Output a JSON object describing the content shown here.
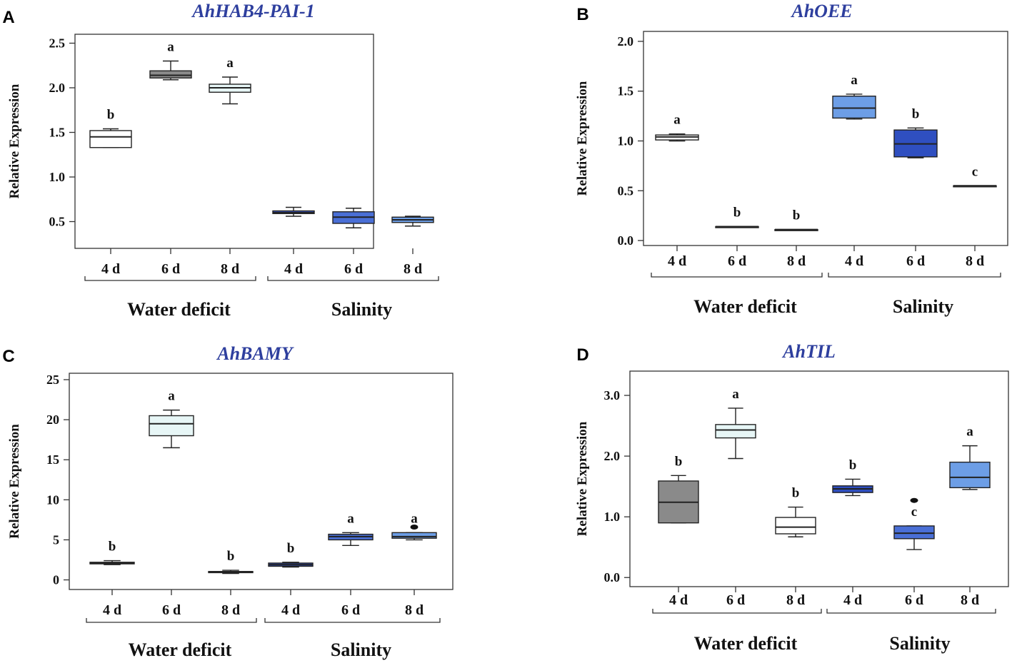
{
  "colors": {
    "title": "#2e3f9e",
    "axis": "#333333",
    "outline": "#222222",
    "white": "#ffffff",
    "gray": "#8a8a8a",
    "light_teal": "#e7f6f6",
    "blue_light": "#6d9ee6",
    "blue_mid": "#4a6fd6",
    "blue_dark": "#2f4fc0",
    "blue_deep": "#3a55c4"
  },
  "chart_data": [
    {
      "panel": "A",
      "type": "box",
      "title": "AhHAB4-PAI-1",
      "ylabel": "Relative Expression",
      "ylim": [
        0.2,
        2.6
      ],
      "yticks": [
        "0.5",
        "1.0",
        "1.5",
        "2.0",
        "2.5"
      ],
      "categories": [
        "4 d",
        "6 d",
        "8 d",
        "4 d",
        "6 d",
        "8 d"
      ],
      "groups": [
        "Water deficit",
        "Salinity"
      ],
      "boxes": [
        {
          "whislo": 1.33,
          "q1": 1.33,
          "med": 1.45,
          "q3": 1.52,
          "whishi": 1.54,
          "label": "b",
          "fill": "white"
        },
        {
          "whislo": 2.09,
          "q1": 2.11,
          "med": 2.14,
          "q3": 2.19,
          "whishi": 2.3,
          "label": "a",
          "fill": "gray"
        },
        {
          "whislo": 1.82,
          "q1": 1.95,
          "med": 2.0,
          "q3": 2.04,
          "whishi": 2.12,
          "label": "a",
          "fill": "light_teal"
        },
        {
          "whislo": 0.56,
          "q1": 0.59,
          "med": 0.6,
          "q3": 0.62,
          "whishi": 0.66,
          "label": "",
          "fill": "blue_deep"
        },
        {
          "whislo": 0.43,
          "q1": 0.48,
          "med": 0.55,
          "q3": 0.61,
          "whishi": 0.65,
          "label": "",
          "fill": "blue_mid"
        },
        {
          "whislo": 0.45,
          "q1": 0.49,
          "med": 0.52,
          "q3": 0.55,
          "whishi": 0.56,
          "label": "",
          "fill": "blue_light"
        }
      ],
      "outliers": []
    },
    {
      "panel": "B",
      "type": "box",
      "title": "AhOEE",
      "ylabel": "Relative Expression",
      "ylim": [
        -0.05,
        2.1
      ],
      "yticks": [
        "0.0",
        "0.5",
        "1.0",
        "1.5",
        "2.0"
      ],
      "categories": [
        "4 d",
        "6 d",
        "8 d",
        "4 d",
        "6 d",
        "8 d"
      ],
      "groups": [
        "Water deficit",
        "Salinity"
      ],
      "boxes": [
        {
          "whislo": 1.0,
          "q1": 1.01,
          "med": 1.04,
          "q3": 1.06,
          "whishi": 1.07,
          "label": "a",
          "fill": "white"
        },
        {
          "whislo": 0.14,
          "q1": 0.14,
          "med": 0.14,
          "q3": 0.14,
          "whishi": 0.14,
          "label": "b",
          "fill": "white"
        },
        {
          "whislo": 0.11,
          "q1": 0.11,
          "med": 0.11,
          "q3": 0.11,
          "whishi": 0.11,
          "label": "b",
          "fill": "white"
        },
        {
          "whislo": 1.22,
          "q1": 1.23,
          "med": 1.33,
          "q3": 1.45,
          "whishi": 1.47,
          "label": "a",
          "fill": "blue_light"
        },
        {
          "whislo": 0.83,
          "q1": 0.84,
          "med": 0.97,
          "q3": 1.11,
          "whishi": 1.13,
          "label": "b",
          "fill": "blue_dark"
        },
        {
          "whislo": 0.55,
          "q1": 0.55,
          "med": 0.55,
          "q3": 0.55,
          "whishi": 0.55,
          "label": "c",
          "fill": "white"
        }
      ],
      "outliers": []
    },
    {
      "panel": "C",
      "type": "box",
      "title": "AhBAMY",
      "ylabel": "Relative Expression",
      "ylim": [
        -1.2,
        25.8
      ],
      "yticks": [
        "0",
        "5",
        "10",
        "15",
        "20",
        "25"
      ],
      "categories": [
        "4 d",
        "6 d",
        "8 d",
        "4 d",
        "6 d",
        "8 d"
      ],
      "groups": [
        "Water deficit",
        "Salinity"
      ],
      "boxes": [
        {
          "whislo": 1.9,
          "q1": 2.0,
          "med": 2.1,
          "q3": 2.2,
          "whishi": 2.4,
          "label": "b",
          "fill": "white"
        },
        {
          "whislo": 16.5,
          "q1": 18.0,
          "med": 19.5,
          "q3": 20.5,
          "whishi": 21.2,
          "label": "a",
          "fill": "light_teal"
        },
        {
          "whislo": 0.8,
          "q1": 0.9,
          "med": 1.0,
          "q3": 1.05,
          "whishi": 1.2,
          "label": "b",
          "fill": "white"
        },
        {
          "whislo": 1.6,
          "q1": 1.7,
          "med": 1.9,
          "q3": 2.1,
          "whishi": 2.2,
          "label": "b",
          "fill": "blue_dark"
        },
        {
          "whislo": 4.3,
          "q1": 5.0,
          "med": 5.4,
          "q3": 5.7,
          "whishi": 5.9,
          "label": "a",
          "fill": "blue_mid"
        },
        {
          "whislo": 5.0,
          "q1": 5.2,
          "med": 5.4,
          "q3": 5.9,
          "whishi": 5.9,
          "label": "a",
          "fill": "blue_light"
        }
      ],
      "outliers": [
        {
          "box": 5,
          "value": 6.6
        }
      ]
    },
    {
      "panel": "D",
      "type": "box",
      "title": "AhTIL",
      "ylabel": "Relative Expression",
      "ylim": [
        -0.15,
        3.4
      ],
      "yticks": [
        "0.0",
        "1.0",
        "2.0",
        "3.0"
      ],
      "categories": [
        "4 d",
        "6 d",
        "8 d",
        "4 d",
        "6 d",
        "8 d"
      ],
      "groups": [
        "Water deficit",
        "Salinity"
      ],
      "boxes": [
        {
          "whislo": 0.9,
          "q1": 0.9,
          "med": 1.24,
          "q3": 1.59,
          "whishi": 1.68,
          "label": "b",
          "fill": "gray"
        },
        {
          "whislo": 1.96,
          "q1": 2.3,
          "med": 2.43,
          "q3": 2.52,
          "whishi": 2.79,
          "label": "a",
          "fill": "light_teal"
        },
        {
          "whislo": 0.67,
          "q1": 0.72,
          "med": 0.83,
          "q3": 0.99,
          "whishi": 1.16,
          "label": "b",
          "fill": "white"
        },
        {
          "whislo": 1.35,
          "q1": 1.4,
          "med": 1.46,
          "q3": 1.51,
          "whishi": 1.62,
          "label": "b",
          "fill": "blue_dark"
        },
        {
          "whislo": 0.46,
          "q1": 0.64,
          "med": 0.73,
          "q3": 0.85,
          "whishi": 0.85,
          "label": "c",
          "fill": "blue_mid"
        },
        {
          "whislo": 1.45,
          "q1": 1.48,
          "med": 1.65,
          "q3": 1.9,
          "whishi": 2.17,
          "label": "a",
          "fill": "blue_light"
        }
      ],
      "outliers": [
        {
          "box": 4,
          "value": 1.27
        }
      ]
    }
  ]
}
